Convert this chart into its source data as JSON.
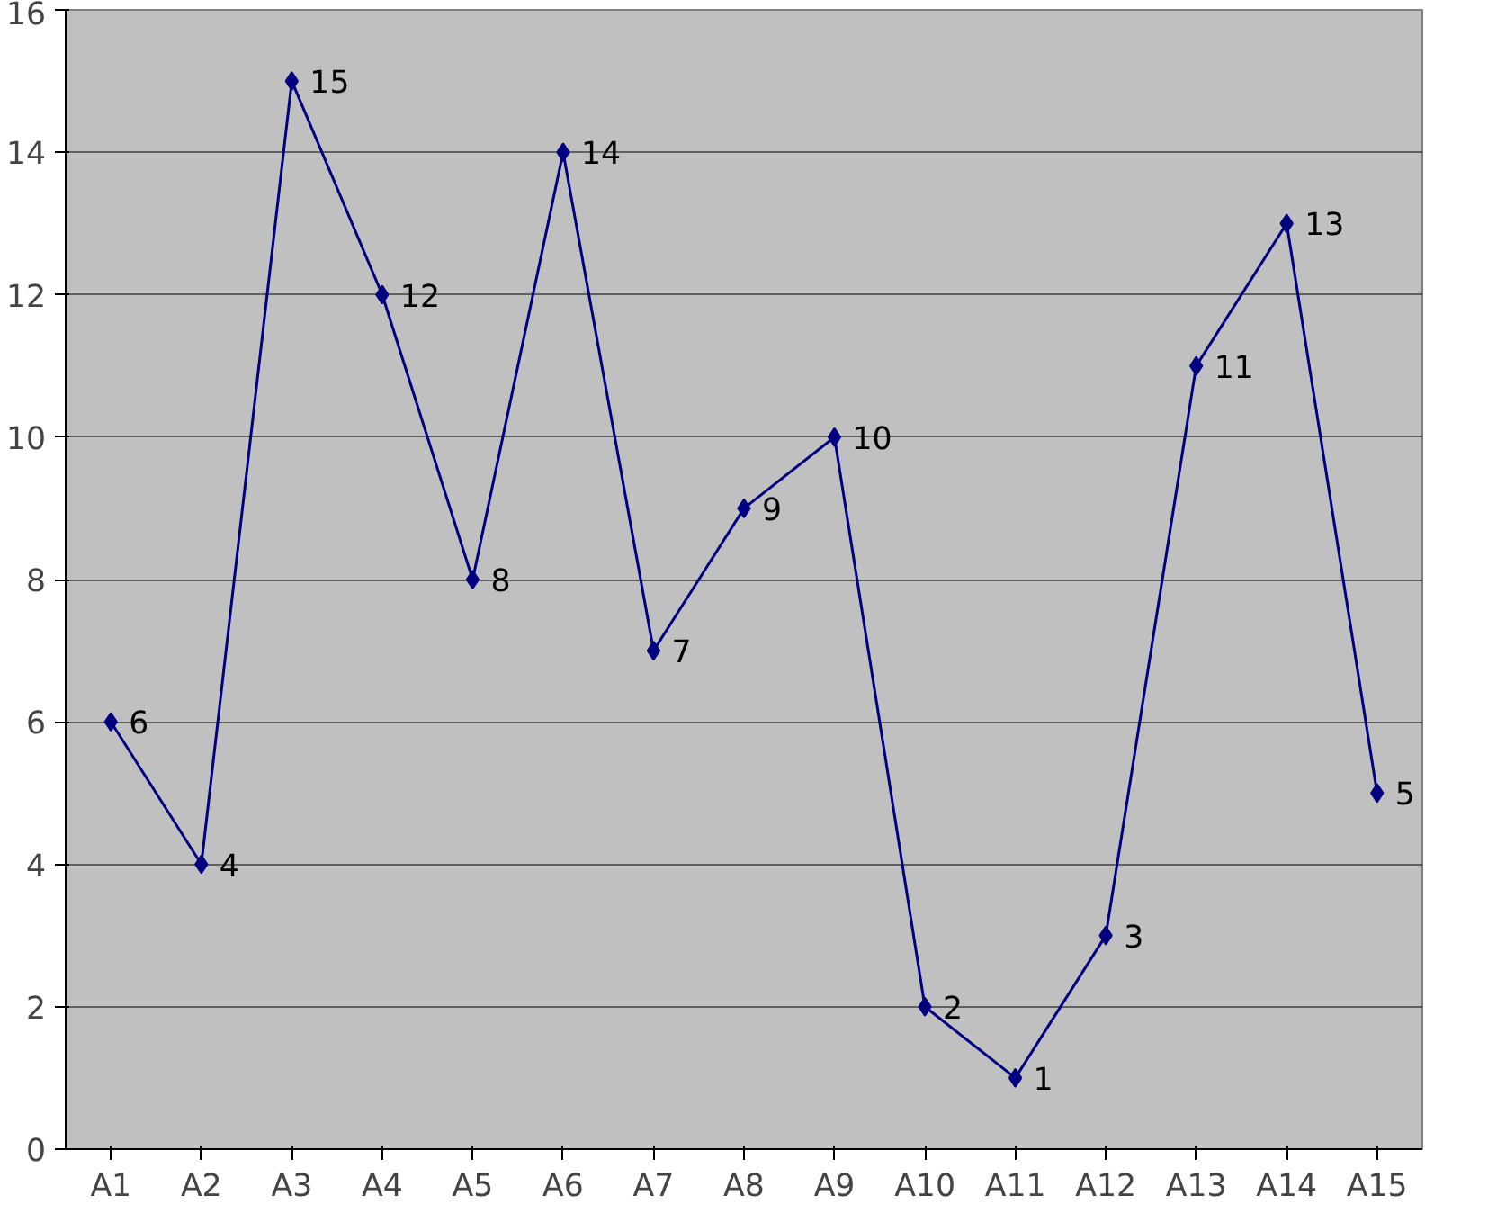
{
  "chart_data": {
    "type": "line",
    "categories": [
      "A1",
      "A2",
      "A3",
      "A4",
      "A5",
      "A6",
      "A7",
      "A8",
      "A9",
      "A10",
      "A11",
      "A12",
      "A13",
      "A14",
      "A15"
    ],
    "series": [
      {
        "color": "#000080",
        "values": [
          6,
          4,
          15,
          12,
          8,
          14,
          7,
          9,
          10,
          2,
          1,
          3,
          11,
          13,
          5
        ]
      }
    ],
    "ylim": [
      0,
      16
    ],
    "yticks": [
      0,
      2,
      4,
      6,
      8,
      10,
      12,
      14,
      16
    ],
    "grid": "y",
    "marker": "diamond",
    "line_style": "solid",
    "data_labels": true
  }
}
